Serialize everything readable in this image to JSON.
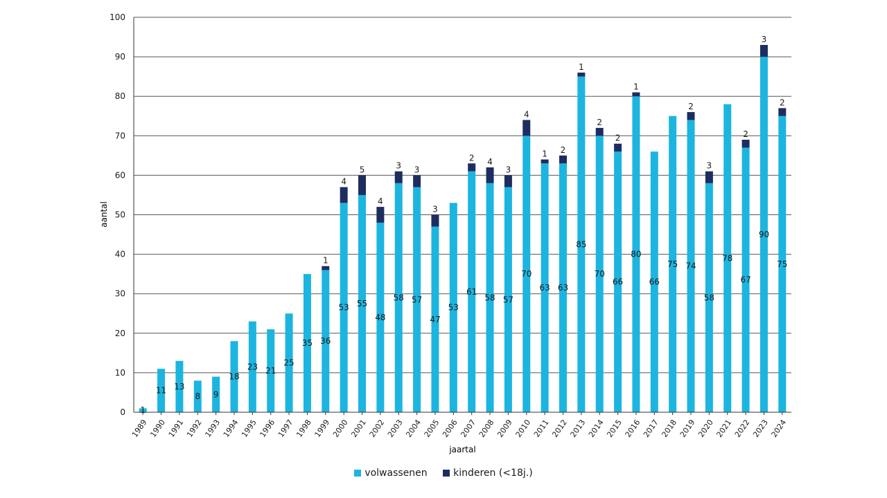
{
  "chart_data": {
    "type": "bar",
    "stacked": true,
    "xlabel": "jaartal",
    "ylabel": "aantal",
    "ylim": [
      0,
      100
    ],
    "yticks": [
      0,
      10,
      20,
      30,
      40,
      50,
      60,
      70,
      80,
      90,
      100
    ],
    "grid": true,
    "legend_position": "bottom",
    "categories": [
      "1989",
      "1990",
      "1991",
      "1992",
      "1993",
      "1994",
      "1995",
      "1996",
      "1997",
      "1998",
      "1999",
      "2000",
      "2001",
      "2002",
      "2003",
      "2004",
      "2005",
      "2006",
      "2007",
      "2008",
      "2009",
      "2010",
      "2011",
      "2012",
      "2013",
      "2014",
      "2015",
      "2016",
      "2017",
      "2018",
      "2019",
      "2020",
      "2021",
      "2022",
      "2023",
      "2024"
    ],
    "series": [
      {
        "name": "volwassenen",
        "color": "#1cb5e0",
        "values": [
          1,
          11,
          13,
          8,
          9,
          18,
          23,
          21,
          25,
          35,
          36,
          53,
          55,
          48,
          58,
          57,
          47,
          53,
          61,
          58,
          57,
          70,
          63,
          63,
          85,
          70,
          66,
          80,
          66,
          75,
          74,
          58,
          78,
          67,
          90,
          75
        ]
      },
      {
        "name": "kinderen (<18j.)",
        "color": "#1e2d5f",
        "values": [
          0,
          0,
          0,
          0,
          0,
          0,
          0,
          0,
          0,
          0,
          1,
          4,
          5,
          4,
          3,
          3,
          3,
          0,
          2,
          4,
          3,
          4,
          1,
          2,
          1,
          2,
          2,
          1,
          0,
          0,
          2,
          3,
          0,
          2,
          3,
          2
        ]
      }
    ]
  }
}
